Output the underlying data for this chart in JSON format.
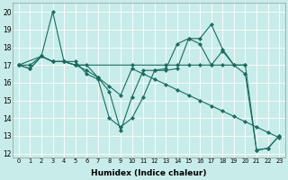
{
  "xlabel": "Humidex (Indice chaleur)",
  "background_color": "#c8ece9",
  "grid_color": "#ffffff",
  "line_color": "#1a6b5e",
  "xlim": [
    -0.5,
    23.5
  ],
  "ylim": [
    11.8,
    20.5
  ],
  "xticks": [
    0,
    1,
    2,
    3,
    4,
    5,
    6,
    7,
    8,
    9,
    10,
    11,
    12,
    13,
    14,
    15,
    16,
    17,
    18,
    19,
    20,
    21,
    22,
    23
  ],
  "yticks": [
    12,
    13,
    14,
    15,
    16,
    17,
    18,
    19,
    20
  ],
  "series": [
    {
      "x": [
        0,
        1,
        2,
        3,
        4,
        5,
        6,
        7,
        8,
        9,
        10,
        11,
        12,
        13,
        14,
        15,
        16,
        17,
        18,
        19,
        20,
        21,
        22,
        23
      ],
      "y": [
        17.0,
        16.8,
        17.5,
        20.0,
        17.2,
        17.0,
        17.0,
        16.3,
        15.5,
        13.3,
        15.2,
        16.7,
        16.7,
        16.7,
        16.8,
        18.5,
        18.2,
        17.0,
        17.8,
        17.0,
        17.0,
        12.2,
        12.3,
        13.0
      ]
    },
    {
      "x": [
        0,
        2,
        3,
        4,
        5,
        10,
        13,
        14,
        15,
        16,
        17,
        18,
        20
      ],
      "y": [
        17.0,
        17.5,
        17.2,
        17.2,
        17.0,
        17.0,
        17.0,
        17.0,
        17.0,
        17.0,
        17.0,
        17.0,
        17.0
      ]
    },
    {
      "x": [
        0,
        1,
        2,
        3,
        4,
        5,
        6,
        7,
        8,
        9,
        10,
        11,
        12,
        13,
        14,
        15,
        16,
        17,
        18,
        19,
        20,
        21,
        22,
        23
      ],
      "y": [
        17.0,
        17.0,
        17.5,
        17.2,
        17.2,
        17.0,
        16.7,
        16.3,
        15.8,
        15.3,
        16.8,
        16.5,
        16.2,
        15.9,
        15.6,
        15.3,
        15.0,
        14.7,
        14.4,
        14.1,
        13.8,
        13.5,
        13.2,
        12.9
      ]
    },
    {
      "x": [
        0,
        1,
        2,
        3,
        4,
        5,
        6,
        7,
        8,
        9,
        10,
        11,
        12,
        13,
        14,
        15,
        16,
        17,
        18,
        19,
        20,
        21,
        22,
        23
      ],
      "y": [
        17.0,
        16.8,
        17.5,
        17.2,
        17.2,
        17.2,
        16.5,
        16.2,
        14.0,
        13.5,
        14.0,
        15.2,
        16.7,
        16.8,
        18.2,
        18.5,
        18.5,
        19.3,
        17.9,
        17.0,
        16.5,
        12.2,
        12.3,
        13.0
      ]
    }
  ]
}
